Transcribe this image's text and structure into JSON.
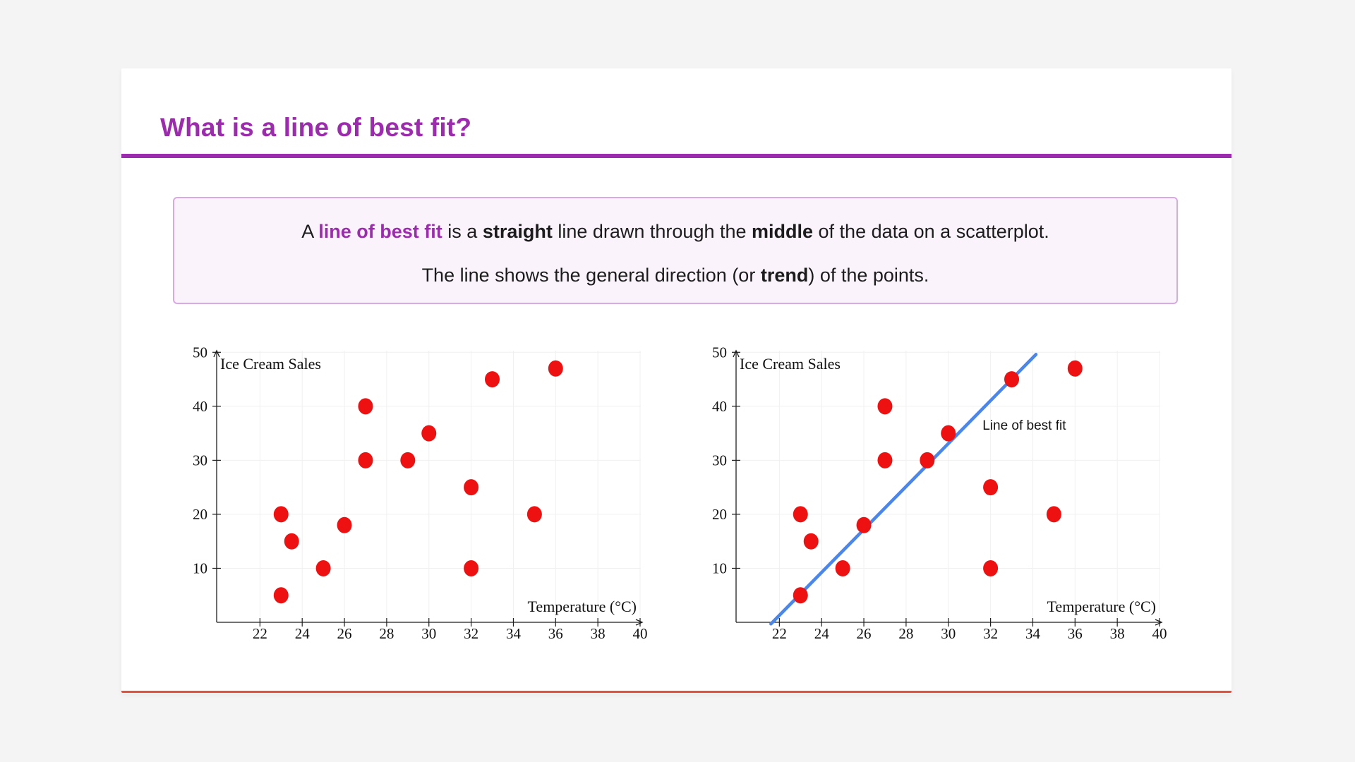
{
  "page": {
    "background": "#f5f4f5"
  },
  "card": {
    "background": "#ffffff",
    "bottom_accent_color": "#e2503c"
  },
  "header": {
    "title": "What is a line of best fit?",
    "title_color": "#9c2bad",
    "divider_color": "#9c2bad"
  },
  "definition_box": {
    "background": "#faf3fc",
    "border_color": "#d8a9e3",
    "line1": [
      {
        "text": "A "
      },
      {
        "text": "line of best fit",
        "bold": true,
        "color": "#9c2bad"
      },
      {
        "text": " is a "
      },
      {
        "text": "straight",
        "bold": true
      },
      {
        "text": " line drawn through the "
      },
      {
        "text": "middle",
        "bold": true
      },
      {
        "text": " of the data on a scatterplot."
      }
    ],
    "line2": [
      {
        "text": "The line shows the general direction (or "
      },
      {
        "text": "trend",
        "bold": true
      },
      {
        "text": ") of the points."
      }
    ]
  },
  "chart_data": [
    {
      "type": "scatter",
      "ylabel": "Ice Cream Sales",
      "xlabel": "Temperature (°C)",
      "x_ticks": [
        22,
        24,
        26,
        28,
        30,
        32,
        34,
        36,
        38,
        40
      ],
      "y_ticks": [
        10,
        20,
        30,
        40,
        50
      ],
      "xlim": [
        19.95,
        40.1
      ],
      "ylim": [
        0,
        50.3
      ],
      "grid": true,
      "gridline_color": "#f0f0f0",
      "axis_color": "#1e1e1e",
      "point_color": "#ee1111",
      "points": [
        [
          23,
          5
        ],
        [
          23,
          20
        ],
        [
          23.5,
          15
        ],
        [
          25,
          10
        ],
        [
          26,
          18
        ],
        [
          27,
          30
        ],
        [
          27,
          40
        ],
        [
          29,
          30
        ],
        [
          30,
          35
        ],
        [
          32,
          10
        ],
        [
          32,
          25
        ],
        [
          33,
          45
        ],
        [
          35,
          20
        ],
        [
          36,
          47
        ]
      ]
    },
    {
      "type": "scatter",
      "ylabel": "Ice Cream Sales",
      "xlabel": "Temperature (°C)",
      "x_ticks": [
        22,
        24,
        26,
        28,
        30,
        32,
        34,
        36,
        38,
        40
      ],
      "y_ticks": [
        10,
        20,
        30,
        40,
        50
      ],
      "xlim": [
        19.95,
        40.1
      ],
      "ylim": [
        0,
        50.3
      ],
      "grid": true,
      "gridline_color": "#f0f0f0",
      "axis_color": "#1e1e1e",
      "point_color": "#ee1111",
      "points": [
        [
          23,
          5
        ],
        [
          23,
          20
        ],
        [
          23.5,
          15
        ],
        [
          25,
          10
        ],
        [
          26,
          18
        ],
        [
          27,
          30
        ],
        [
          27,
          40
        ],
        [
          29,
          30
        ],
        [
          30,
          35
        ],
        [
          32,
          10
        ],
        [
          32,
          25
        ],
        [
          33,
          45
        ],
        [
          35,
          20
        ],
        [
          36,
          47
        ]
      ],
      "trend_line": {
        "from": [
          21.6,
          -0.3
        ],
        "to": [
          34.15,
          49.6
        ],
        "color": "#4b87ea",
        "label": "Line of best fit",
        "label_color": "#111111",
        "label_at": [
          31.62,
          36.6
        ]
      }
    }
  ]
}
